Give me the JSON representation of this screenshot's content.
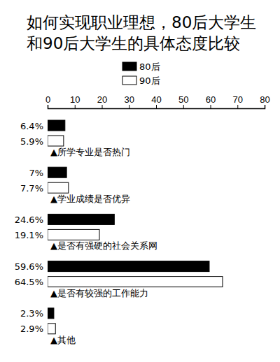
{
  "chart_data": {
    "type": "bar",
    "orientation": "horizontal",
    "title": "如何实现职业理想，80后大学生和90后大学生的具体态度比较",
    "categories": [
      "▲所学专业是否热门",
      "▲学业成绩是否优异",
      "▲是否有强硬的社会关系网",
      "▲是否有较强的工作能力",
      "▲其他"
    ],
    "series": [
      {
        "name": "80后",
        "color": "#000000",
        "values": [
          6.4,
          7,
          24.6,
          59.6,
          2.3
        ],
        "value_labels": [
          "6.4%",
          "7%",
          "24.6%",
          "59.6%",
          "2.3%"
        ]
      },
      {
        "name": "90后",
        "color": "#ffffff",
        "values": [
          5.9,
          7.7,
          19.1,
          64.5,
          2.9
        ],
        "value_labels": [
          "5.9%",
          "7.7%",
          "19.1%",
          "64.5%",
          "2.9%"
        ]
      }
    ],
    "xlim": [
      0,
      80
    ],
    "xticks": [
      0,
      10,
      20,
      30,
      40,
      50,
      60,
      70,
      80
    ],
    "grid": false,
    "legend": "top",
    "data_labels": true
  }
}
